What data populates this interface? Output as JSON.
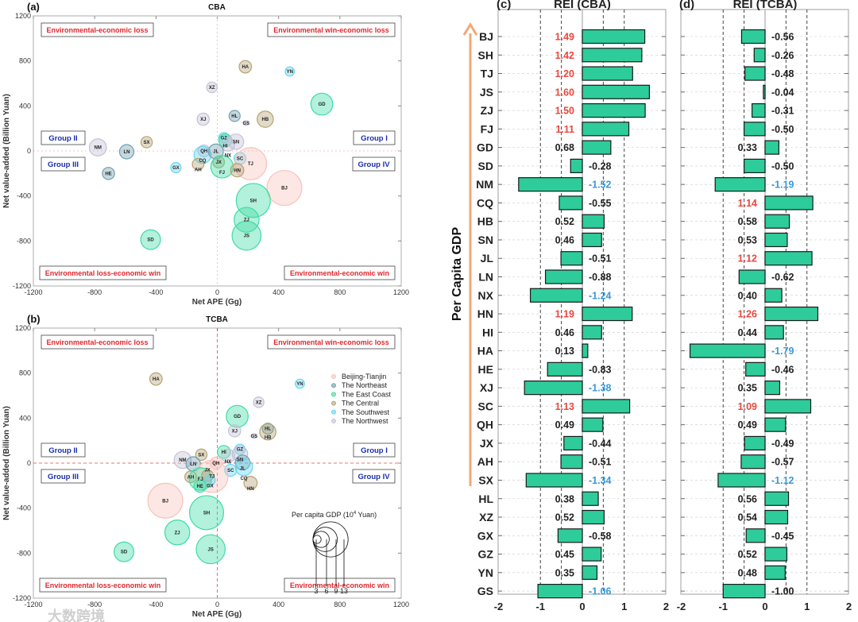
{
  "watermark": "大数跨境",
  "colors": {
    "Beijing-Tianjin": "#f7c3bc",
    "The Northeast": "#6e9fae",
    "The East Coast": "#3fdca6",
    "The Central": "#b7a374",
    "The Southwest": "#66d5f2",
    "The Northwest": "#c4c0d6",
    "bar": "#2ecc9a",
    "pos_label": "#e8483f",
    "neg_label": "#3a9ad9",
    "arrow": "#f0a878"
  },
  "chart_data": [
    {
      "type": "scatter",
      "panel": "(a)",
      "title": "CBA",
      "xlabel": "Net APE (Gg)",
      "ylabel": "Net value-added (Billion Yuan)",
      "xlim": [
        -1200,
        1200
      ],
      "ylim": [
        -1200,
        1200
      ],
      "xticks": [
        -1200,
        -800,
        -400,
        0,
        400,
        800,
        1200
      ],
      "yticks": [
        -1200,
        -800,
        -400,
        0,
        400,
        800,
        1200
      ],
      "quadrants": {
        "tl": "Environmental-economic loss",
        "tr": "Environmental win-economic loss",
        "bl": "Environmental loss-economic win",
        "br": "Environmental-economic win"
      },
      "groups": {
        "g1": "Group I",
        "g2": "Group II",
        "g3": "Group III",
        "g4": "Group IV"
      },
      "points": [
        {
          "id": "HA",
          "x": 183,
          "y": 748,
          "gdp": 4.6,
          "region": "The Central"
        },
        {
          "id": "YN",
          "x": 473,
          "y": 706,
          "gdp": 3.4,
          "region": "The Southwest"
        },
        {
          "id": "XZ",
          "x": -35,
          "y": 565,
          "gdp": 3.9,
          "region": "The Northwest"
        },
        {
          "id": "GD",
          "x": 682,
          "y": 416,
          "gdp": 8.1,
          "region": "The East Coast"
        },
        {
          "id": "XJ",
          "x": -92,
          "y": 282,
          "gdp": 4.5,
          "region": "The Northwest"
        },
        {
          "id": "HL",
          "x": 113,
          "y": 311,
          "gdp": 4.1,
          "region": "The Northeast"
        },
        {
          "id": "GS",
          "x": 188,
          "y": 247,
          "gdp": 1.5,
          "region": "The Northwest"
        },
        {
          "id": "HB",
          "x": 313,
          "y": 282,
          "gdp": 6.0,
          "region": "The Central"
        },
        {
          "id": "SX",
          "x": -461,
          "y": 78,
          "gdp": 4.2,
          "region": "The Central"
        },
        {
          "id": "NM",
          "x": -779,
          "y": 31,
          "gdp": 6.3,
          "region": "The Northwest"
        },
        {
          "id": "LN",
          "x": -591,
          "y": -7,
          "gdp": 5.3,
          "region": "The Northeast"
        },
        {
          "id": "GZ",
          "x": 43,
          "y": 118,
          "gdp": 3.8,
          "region": "The Southwest"
        },
        {
          "id": "HI",
          "x": 52,
          "y": 94,
          "gdp": 4.8,
          "region": "The East Coast"
        },
        {
          "id": "NX",
          "x": 70,
          "y": 59,
          "gdp": 5.0,
          "region": "The Northwest"
        },
        {
          "id": "SN",
          "x": 122,
          "y": 82,
          "gdp": 5.7,
          "region": "The Northwest"
        },
        {
          "id": "QH",
          "x": -87,
          "y": 0,
          "gdp": 4.4,
          "region": "The Northwest"
        },
        {
          "id": "CQ",
          "x": -96,
          "y": -35,
          "gdp": 6.3,
          "region": "The Southwest"
        },
        {
          "id": "JL",
          "x": -9,
          "y": -5,
          "gdp": 5.5,
          "region": "The Northeast"
        },
        {
          "id": "SC",
          "x": 148,
          "y": -66,
          "gdp": 4.4,
          "region": "The Southwest"
        },
        {
          "id": "TJ",
          "x": 217,
          "y": -113,
          "gdp": 11.9,
          "region": "Beijing-Tianjin"
        },
        {
          "id": "GX",
          "x": -270,
          "y": -148,
          "gdp": 3.8,
          "region": "The Southwest"
        },
        {
          "id": "AH",
          "x": -125,
          "y": -118,
          "gdp": 4.3,
          "region": "The Central"
        },
        {
          "id": "JX",
          "x": 9,
          "y": -99,
          "gdp": 4.3,
          "region": "The Central"
        },
        {
          "id": "FJ",
          "x": 31,
          "y": -141,
          "gdp": 8.3,
          "region": "The East Coast"
        },
        {
          "id": "HN",
          "x": 130,
          "y": -172,
          "gdp": 4.9,
          "region": "The Central"
        },
        {
          "id": "HE",
          "x": -710,
          "y": -200,
          "gdp": 4.5,
          "region": "The Northeast"
        },
        {
          "id": "BJ",
          "x": 438,
          "y": -329,
          "gdp": 12.9,
          "region": "Beijing-Tianjin"
        },
        {
          "id": "SH",
          "x": 235,
          "y": -440,
          "gdp": 12.6,
          "region": "The East Coast"
        },
        {
          "id": "ZJ",
          "x": 191,
          "y": -612,
          "gdp": 9.2,
          "region": "The East Coast"
        },
        {
          "id": "JS",
          "x": 191,
          "y": -753,
          "gdp": 10.7,
          "region": "The East Coast"
        },
        {
          "id": "SD",
          "x": -435,
          "y": -788,
          "gdp": 7.3,
          "region": "The East Coast"
        }
      ]
    },
    {
      "type": "scatter",
      "panel": "(b)",
      "title": "TCBA",
      "xlabel": "Net APE (Gg)",
      "ylabel": "Net value-added (Billion Yuan)",
      "xlim": [
        -1200,
        1200
      ],
      "ylim": [
        -1200,
        1200
      ],
      "xticks": [
        -1200,
        -800,
        -400,
        0,
        400,
        800,
        1200
      ],
      "yticks": [
        -1200,
        -800,
        -400,
        0,
        400,
        800,
        1200
      ],
      "quadrants": {
        "tl": "Environmental-economic loss",
        "tr": "Environmental win-economic loss",
        "bl": "Environmental loss-economic win",
        "br": "Environmental-economic win"
      },
      "groups": {
        "g1": "Group I",
        "g2": "Group II",
        "g3": "Group III",
        "g4": "Group IV"
      },
      "legend": [
        "Beijing-Tianjin",
        "The Northeast",
        "The East Coast",
        "The Central",
        "The Southwest",
        "The Northwest"
      ],
      "size_legend": {
        "title": "Per capita GDP (10",
        "sup": "4",
        "unit": " Yuan)",
        "values": [
          3,
          6,
          9,
          13
        ]
      },
      "points": [
        {
          "id": "HA",
          "x": -400,
          "y": 748,
          "gdp": 4.6,
          "region": "The Central"
        },
        {
          "id": "YN",
          "x": 539,
          "y": 706,
          "gdp": 3.4,
          "region": "The Southwest"
        },
        {
          "id": "XZ",
          "x": 270,
          "y": 541,
          "gdp": 3.9,
          "region": "The Northwest"
        },
        {
          "id": "GD",
          "x": 130,
          "y": 416,
          "gdp": 8.1,
          "region": "The East Coast"
        },
        {
          "id": "XJ",
          "x": 113,
          "y": 287,
          "gdp": 4.5,
          "region": "The Northwest"
        },
        {
          "id": "GS",
          "x": 240,
          "y": 240,
          "gdp": 1.5,
          "region": "The Northwest"
        },
        {
          "id": "HL",
          "x": 330,
          "y": 306,
          "gdp": 4.1,
          "region": "The Northeast"
        },
        {
          "id": "HB",
          "x": 330,
          "y": 278,
          "gdp": 6.0,
          "region": "The Central"
        },
        {
          "id": "SX",
          "x": -104,
          "y": 75,
          "gdp": 4.2,
          "region": "The Central"
        },
        {
          "id": "NM",
          "x": -226,
          "y": 28,
          "gdp": 6.3,
          "region": "The Northwest"
        },
        {
          "id": "LN",
          "x": -157,
          "y": -7,
          "gdp": 5.3,
          "region": "The Northeast"
        },
        {
          "id": "HI",
          "x": 43,
          "y": 99,
          "gdp": 4.8,
          "region": "The East Coast"
        },
        {
          "id": "NX",
          "x": 70,
          "y": 64,
          "gdp": 5.0,
          "region": "The Northwest"
        },
        {
          "id": "GZ",
          "x": 148,
          "y": 122,
          "gdp": 3.8,
          "region": "The Southwest"
        },
        {
          "id": "SN",
          "x": 148,
          "y": 82,
          "gdp": 5.7,
          "region": "The Northwest"
        },
        {
          "id": "QH",
          "x": -9,
          "y": 0,
          "gdp": 4.4,
          "region": "Beijing-Tianjin"
        },
        {
          "id": "JL",
          "x": 165,
          "y": 5,
          "gdp": 5.5,
          "region": "The Northeast"
        },
        {
          "id": "CQ",
          "x": 174,
          "y": -35,
          "gdp": 6.3,
          "region": "The Southwest"
        },
        {
          "id": "SC",
          "x": 87,
          "y": -64,
          "gdp": 4.4,
          "region": "The Southwest"
        },
        {
          "id": "TJ",
          "x": -35,
          "y": -118,
          "gdp": 11.9,
          "region": "Beijing-Tianjin"
        },
        {
          "id": "AH",
          "x": -174,
          "y": -122,
          "gdp": 4.3,
          "region": "The Central"
        },
        {
          "id": "FJ",
          "x": -110,
          "y": -141,
          "gdp": 8.3,
          "region": "The East Coast"
        },
        {
          "id": "JX",
          "x": -64,
          "y": -111,
          "gdp": 4.3,
          "region": "The Central"
        },
        {
          "id": "GX",
          "x": -47,
          "y": -153,
          "gdp": 3.8,
          "region": "The Southwest"
        },
        {
          "id": "HE",
          "x": -113,
          "y": -205,
          "gdp": 4.5,
          "region": "The East Coast"
        },
        {
          "id": "HN",
          "x": 217,
          "y": -176,
          "gdp": 4.9,
          "region": "The Central"
        },
        {
          "id": "BJ",
          "x": -339,
          "y": -334,
          "gdp": 12.9,
          "region": "Beijing-Tianjin"
        },
        {
          "id": "SH",
          "x": -70,
          "y": -440,
          "gdp": 12.6,
          "region": "The East Coast"
        },
        {
          "id": "ZJ",
          "x": -261,
          "y": -616,
          "gdp": 9.2,
          "region": "The East Coast"
        },
        {
          "id": "JS",
          "x": -43,
          "y": -765,
          "gdp": 10.7,
          "region": "The East Coast"
        },
        {
          "id": "SD",
          "x": -609,
          "y": -788,
          "gdp": 7.3,
          "region": "The East Coast"
        }
      ]
    },
    {
      "type": "bar",
      "orientation": "horizontal",
      "panel": "(c)",
      "title": "REI (CBA)",
      "ylabel": "Per Capita GDP",
      "xlim": [
        -2,
        2
      ],
      "xticks": [
        -2,
        -1,
        0,
        1,
        2
      ],
      "reference_lines": [
        -1,
        -0.5,
        0.5,
        1
      ],
      "categories": [
        "BJ",
        "SH",
        "TJ",
        "JS",
        "ZJ",
        "FJ",
        "GD",
        "SD",
        "NM",
        "CQ",
        "HB",
        "SN",
        "JL",
        "LN",
        "NX",
        "HN",
        "HI",
        "HA",
        "HE",
        "XJ",
        "SC",
        "QH",
        "JX",
        "AH",
        "SX",
        "HL",
        "XZ",
        "GX",
        "GZ",
        "YN",
        "GS"
      ],
      "values": [
        1.49,
        1.42,
        1.2,
        1.6,
        1.5,
        1.11,
        0.68,
        -0.28,
        -1.52,
        -0.55,
        0.52,
        0.46,
        -0.51,
        -0.88,
        -1.24,
        1.19,
        0.46,
        0.13,
        -0.83,
        -1.38,
        1.13,
        0.49,
        -0.44,
        -0.51,
        -1.34,
        0.38,
        0.52,
        -0.58,
        0.45,
        0.35,
        -1.06
      ]
    },
    {
      "type": "bar",
      "orientation": "horizontal",
      "panel": "(d)",
      "title": "REI (TCBA)",
      "xlim": [
        -2,
        2
      ],
      "xticks": [
        -2,
        -1,
        0,
        1,
        2
      ],
      "reference_lines": [
        -1,
        -0.5,
        0.5,
        1
      ],
      "categories": [
        "BJ",
        "SH",
        "TJ",
        "JS",
        "ZJ",
        "FJ",
        "GD",
        "SD",
        "NM",
        "CQ",
        "HB",
        "SN",
        "JL",
        "LN",
        "NX",
        "HN",
        "HI",
        "HA",
        "HE",
        "XJ",
        "SC",
        "QH",
        "JX",
        "AH",
        "SX",
        "HL",
        "XZ",
        "GX",
        "GZ",
        "YN",
        "GS"
      ],
      "values": [
        -0.56,
        -0.26,
        -0.48,
        -0.04,
        -0.31,
        -0.5,
        0.33,
        -0.5,
        -1.19,
        1.14,
        0.58,
        0.53,
        1.12,
        -0.62,
        0.4,
        1.26,
        0.44,
        -1.79,
        -0.46,
        0.35,
        1.09,
        0.49,
        -0.49,
        -0.57,
        -1.12,
        0.56,
        0.54,
        -0.45,
        0.52,
        0.48,
        -1.0
      ]
    }
  ]
}
